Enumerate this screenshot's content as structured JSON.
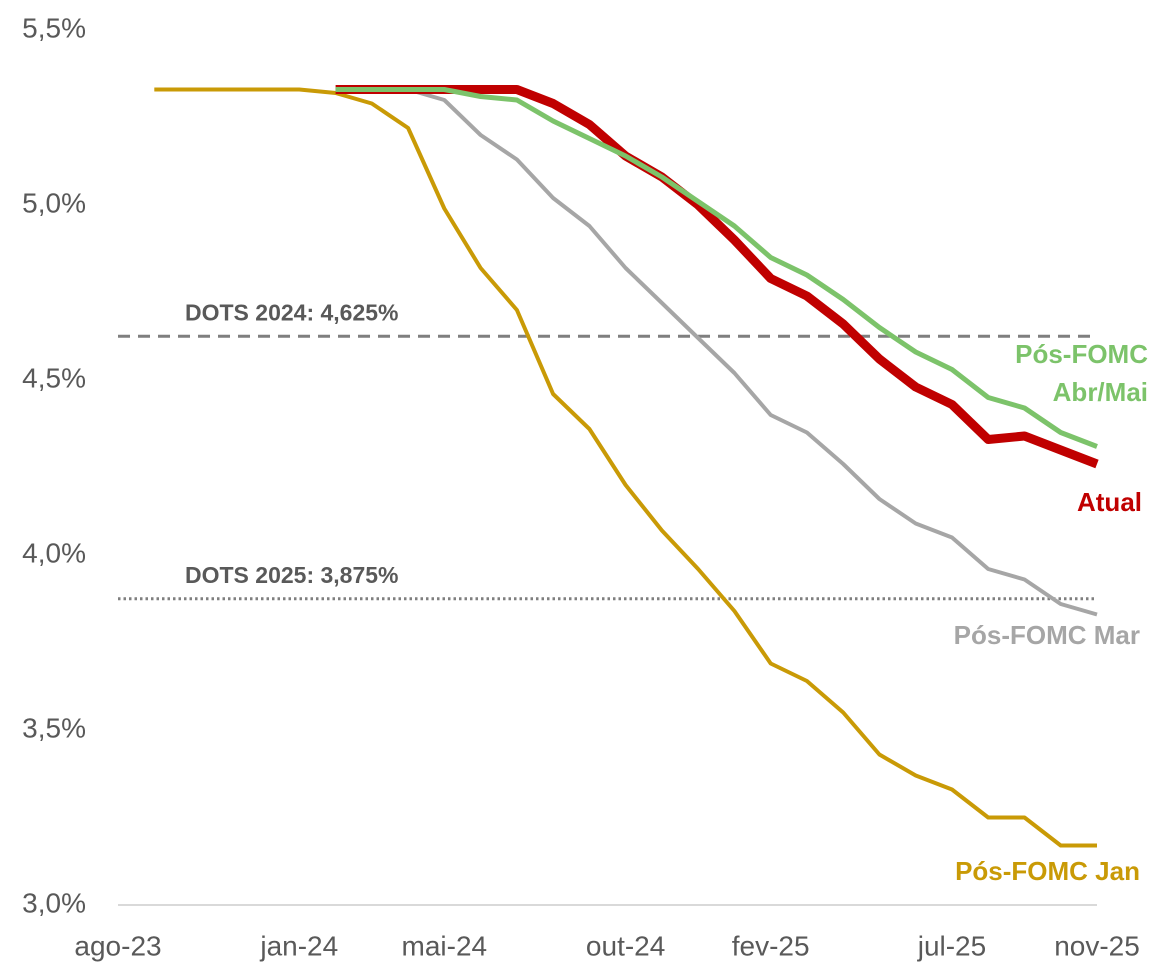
{
  "chart_data": {
    "type": "line",
    "categories": [
      "ago-23",
      null,
      null,
      null,
      null,
      "jan-24",
      null,
      null,
      null,
      "mai-24",
      null,
      null,
      null,
      null,
      "out-24",
      null,
      null,
      null,
      "fev-25",
      null,
      null,
      null,
      null,
      "jul-25",
      null,
      null,
      null,
      "nov-25"
    ],
    "series": [
      {
        "name": "Pós-FOMC Jan",
        "color": "#c99a06",
        "values": [
          null,
          5.33,
          5.33,
          5.33,
          5.33,
          5.33,
          5.32,
          5.29,
          5.22,
          4.99,
          4.82,
          4.7,
          4.46,
          4.36,
          4.2,
          4.07,
          3.96,
          3.84,
          3.69,
          3.64,
          3.55,
          3.43,
          3.37,
          3.33,
          3.25,
          3.25,
          3.17,
          3.17
        ]
      },
      {
        "name": "Pós-FOMC Mar",
        "color": "#a6a6a6",
        "values": [
          null,
          null,
          null,
          null,
          null,
          null,
          5.33,
          5.33,
          5.33,
          5.3,
          5.2,
          5.13,
          5.02,
          4.94,
          4.82,
          4.72,
          4.62,
          4.52,
          4.4,
          4.35,
          4.26,
          4.16,
          4.09,
          4.05,
          3.96,
          3.93,
          3.86,
          3.83
        ]
      },
      {
        "name": "Atual",
        "color": "#c00000",
        "values": [
          null,
          null,
          null,
          null,
          null,
          null,
          5.33,
          5.33,
          5.33,
          5.33,
          5.33,
          5.33,
          5.29,
          5.23,
          5.14,
          5.08,
          5.0,
          4.9,
          4.79,
          4.74,
          4.66,
          4.56,
          4.48,
          4.43,
          4.33,
          4.34,
          4.3,
          4.26
        ]
      },
      {
        "name": "Pós-FOMC Abr/Mai",
        "color": "#7cc36a",
        "values": [
          null,
          null,
          null,
          null,
          null,
          null,
          5.33,
          5.33,
          5.33,
          5.33,
          5.31,
          5.3,
          5.24,
          5.19,
          5.14,
          5.08,
          5.01,
          4.94,
          4.85,
          4.8,
          4.73,
          4.65,
          4.58,
          4.53,
          4.45,
          4.42,
          4.35,
          4.31
        ]
      }
    ],
    "ylim": [
      3.0,
      5.5
    ],
    "yticks": [
      {
        "value": 3.0,
        "label": "3,0%"
      },
      {
        "value": 3.5,
        "label": "3,5%"
      },
      {
        "value": 4.0,
        "label": "4,0%"
      },
      {
        "value": 4.5,
        "label": "4,5%"
      },
      {
        "value": 5.0,
        "label": "5,0%"
      },
      {
        "value": 5.5,
        "label": "5,5%"
      }
    ],
    "reference_lines": [
      {
        "value": 4.625,
        "label": "DOTS 2024: 4,625%",
        "style": "dashed"
      },
      {
        "value": 3.875,
        "label": "DOTS 2025: 3,875%",
        "style": "dotted"
      }
    ]
  }
}
